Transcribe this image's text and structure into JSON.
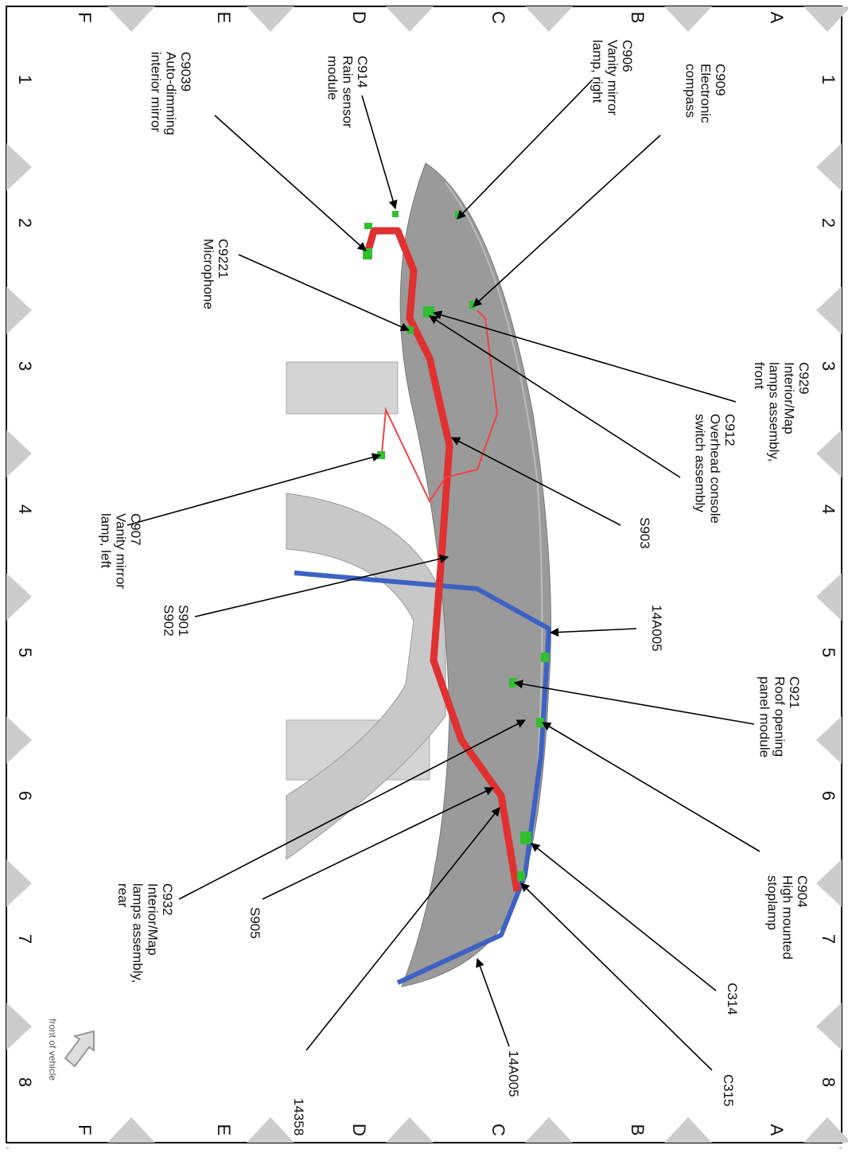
{
  "grid": {
    "rows": [
      "A",
      "B",
      "C",
      "D",
      "E",
      "F"
    ],
    "columns": [
      "1",
      "2",
      "3",
      "4",
      "5",
      "6",
      "7",
      "8"
    ]
  },
  "callouts": [
    {
      "lines": [
        "C909",
        "Electronic",
        "compass"
      ]
    },
    {
      "lines": [
        "C906",
        "Vanity mirror",
        "lamp, right"
      ]
    },
    {
      "lines": [
        "C914",
        "Rain sensor",
        "module"
      ]
    },
    {
      "lines": [
        "C9039",
        "Auto-dimming",
        "interior mirror"
      ]
    },
    {
      "lines": [
        "C9221",
        "Microphone"
      ]
    },
    {
      "lines": [
        "C929",
        "Interior/Map",
        "lamps assembly,",
        "front"
      ]
    },
    {
      "lines": [
        "C912",
        "Overhead console",
        "switch assembly"
      ]
    },
    {
      "lines": [
        "S903"
      ]
    },
    {
      "lines": [
        "C907",
        "Vanity mirror",
        "lamp, left"
      ]
    },
    {
      "lines": [
        "S901",
        "S902"
      ]
    },
    {
      "lines": [
        "14A005"
      ]
    },
    {
      "lines": [
        "C921",
        "Roof opening",
        "panel module"
      ]
    },
    {
      "lines": [
        "C904",
        "High mounted",
        "stoplamp"
      ]
    },
    {
      "lines": [
        "C932",
        "Interior/Map",
        "lamps assembly,",
        "rear"
      ]
    },
    {
      "lines": [
        "S905"
      ]
    },
    {
      "lines": [
        "C314"
      ]
    },
    {
      "lines": [
        "C315"
      ]
    },
    {
      "lines": [
        "14358"
      ]
    },
    {
      "lines": [
        "14A005"
      ]
    }
  ],
  "front_label": "front of vehicle"
}
